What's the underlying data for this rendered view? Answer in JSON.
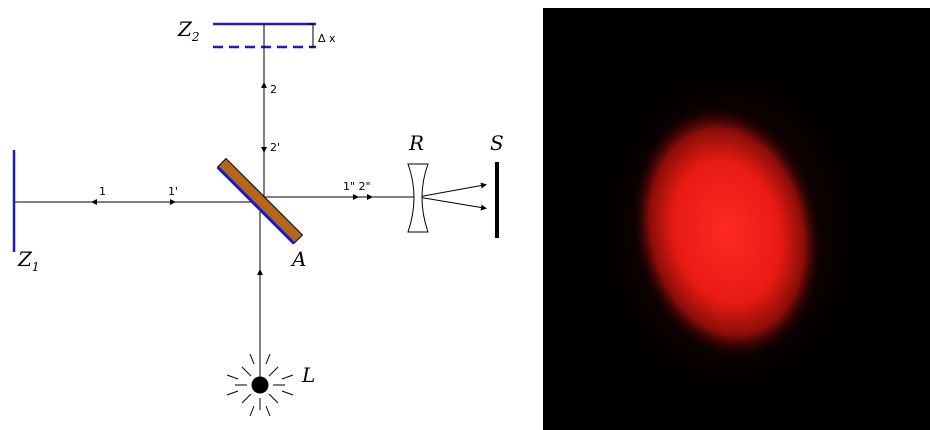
{
  "diagram": {
    "mirror_2": {
      "label": "Z",
      "subscript": "2"
    },
    "displacement": "Δ x",
    "beam_2": "2",
    "beam_2_prime": "2'",
    "beam_1": "1",
    "beam_1_prime": "1'",
    "beam_out": "1\" 2\"",
    "lens": "R",
    "screen": "S",
    "mirror_1": {
      "label": "Z",
      "subscript": "1"
    },
    "splitter": "A",
    "source": "L"
  }
}
